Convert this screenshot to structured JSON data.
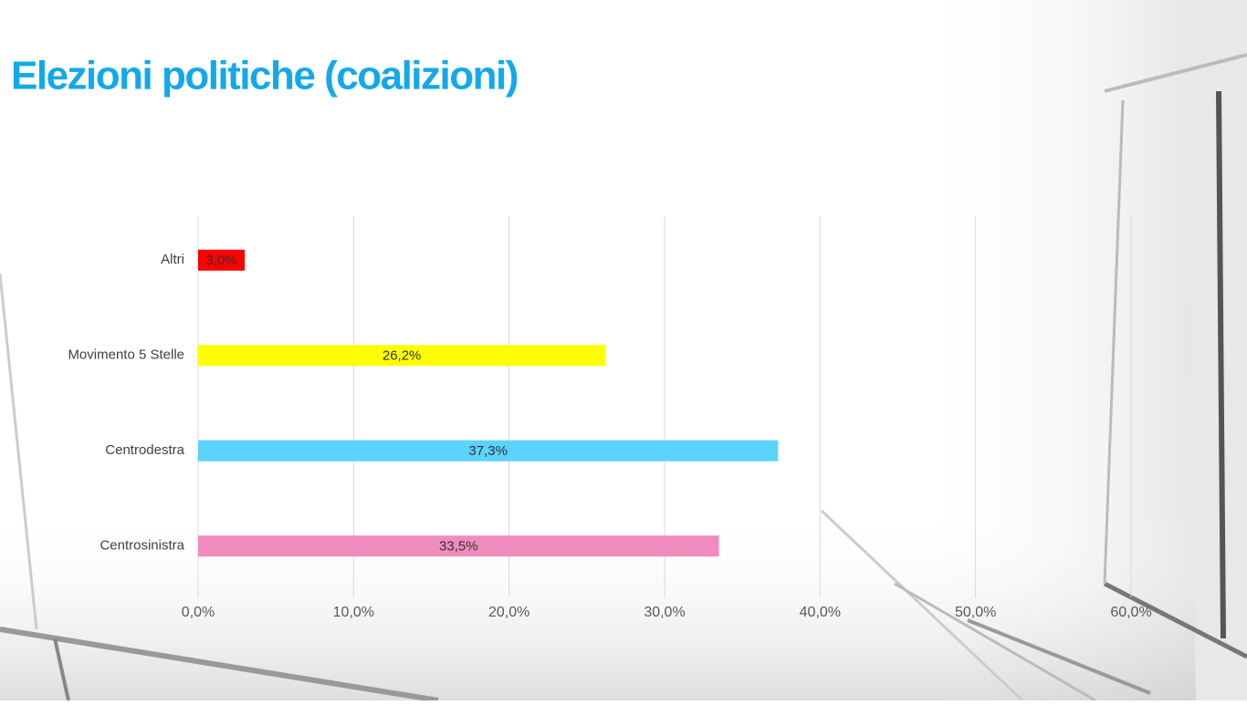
{
  "chart_data": {
    "type": "hbar",
    "title": "Elezioni politiche (coalizioni)",
    "categories": [
      "Altri",
      "Movimento 5 Stelle",
      "Centrodestra",
      "Centrosinistra"
    ],
    "values": [
      3.0,
      26.2,
      37.3,
      33.5
    ],
    "value_labels": [
      "3,0%",
      "26,2%",
      "37,3%",
      "33,5%"
    ],
    "colors": [
      "#ff0000",
      "#ffff00",
      "#5bd3ff",
      "#f08cbd"
    ],
    "xlim": [
      0,
      60
    ],
    "xticks": [
      {
        "value": 0,
        "label": "0,0%"
      },
      {
        "value": 10,
        "label": "10,0%"
      },
      {
        "value": 20,
        "label": "20,0%"
      },
      {
        "value": 30,
        "label": "30,0%"
      },
      {
        "value": 40,
        "label": "40,0%"
      },
      {
        "value": 50,
        "label": "50,0%"
      },
      {
        "value": 60,
        "label": "60,0%"
      }
    ],
    "grid": true
  }
}
